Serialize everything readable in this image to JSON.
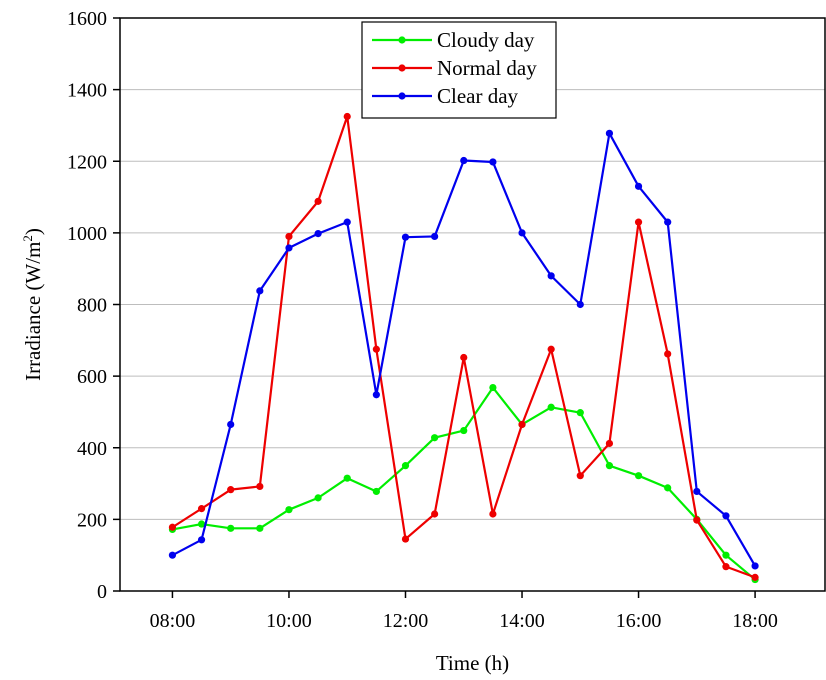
{
  "chart_data": {
    "type": "line",
    "xlabel": "Time (h)",
    "ylabel_main": "Irradiance (W/m",
    "ylabel_sup": "2",
    "ylabel_end": ")",
    "ylim": [
      0,
      1600
    ],
    "yticks": [
      0,
      200,
      400,
      600,
      800,
      1000,
      1200,
      1400,
      1600
    ],
    "xlim_hours": [
      7.1,
      19.2
    ],
    "xticks": [
      "08:00",
      "10:00",
      "12:00",
      "14:00",
      "16:00",
      "18:00"
    ],
    "grid": true,
    "legend_position": "top-center",
    "x": [
      "08:00",
      "08:30",
      "09:00",
      "09:30",
      "10:00",
      "10:30",
      "11:00",
      "11:30",
      "12:00",
      "12:30",
      "13:00",
      "13:30",
      "14:00",
      "14:30",
      "15:00",
      "15:30",
      "16:00",
      "16:30",
      "17:00",
      "17:30",
      "18:00"
    ],
    "series": [
      {
        "name": "Cloudy day",
        "color": "#00ee00",
        "values": [
          172,
          187,
          175,
          175,
          227,
          260,
          315,
          278,
          350,
          428,
          448,
          568,
          465,
          513,
          498,
          350,
          322,
          288,
          200,
          100,
          32
        ]
      },
      {
        "name": "Normal day",
        "color": "#ee0000",
        "values": [
          178,
          230,
          283,
          292,
          990,
          1088,
          1325,
          675,
          145,
          215,
          652,
          215,
          465,
          675,
          322,
          412,
          1030,
          662,
          198,
          68,
          38
        ]
      },
      {
        "name": "Clear day",
        "color": "#0000ee",
        "values": [
          100,
          143,
          465,
          838,
          958,
          998,
          1030,
          548,
          988,
          990,
          1202,
          1198,
          1000,
          880,
          800,
          1278,
          1130,
          1030,
          278,
          210,
          70
        ]
      }
    ]
  }
}
